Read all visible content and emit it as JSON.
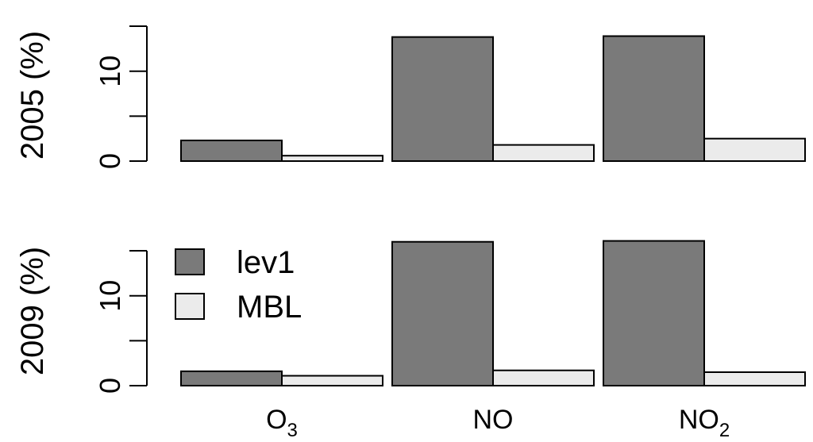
{
  "colors": {
    "lev1": "#7a7a7a",
    "MBL": "#ebebeb",
    "stroke": "#000000"
  },
  "chart_data": [
    {
      "type": "bar",
      "panel": "top",
      "ylabel": "2005 (%)",
      "categories": [
        "O3",
        "NO",
        "NO2"
      ],
      "series": [
        {
          "name": "lev1",
          "values": [
            2.3,
            13.8,
            13.9
          ]
        },
        {
          "name": "MBL",
          "values": [
            0.6,
            1.8,
            2.5
          ]
        }
      ],
      "ylim": [
        0,
        15
      ],
      "yticks": [
        0,
        5,
        10,
        15
      ],
      "ytick_labels": [
        "0",
        "",
        "10",
        ""
      ],
      "grid": false
    },
    {
      "type": "bar",
      "panel": "bottom",
      "ylabel": "2009 (%)",
      "categories": [
        "O3",
        "NO",
        "NO2"
      ],
      "category_labels": [
        {
          "base": "O",
          "sub": "3"
        },
        {
          "base": "NO",
          "sub": ""
        },
        {
          "base": "NO",
          "sub": "2"
        }
      ],
      "series": [
        {
          "name": "lev1",
          "values": [
            1.6,
            16.0,
            16.1
          ]
        },
        {
          "name": "MBL",
          "values": [
            1.1,
            1.7,
            1.5
          ]
        }
      ],
      "ylim": [
        0,
        15
      ],
      "yticks": [
        0,
        5,
        10,
        15
      ],
      "ytick_labels": [
        "0",
        "",
        "10",
        ""
      ],
      "legend": {
        "placement": "top-left",
        "entries": [
          "lev1",
          "MBL"
        ]
      },
      "grid": false
    }
  ]
}
